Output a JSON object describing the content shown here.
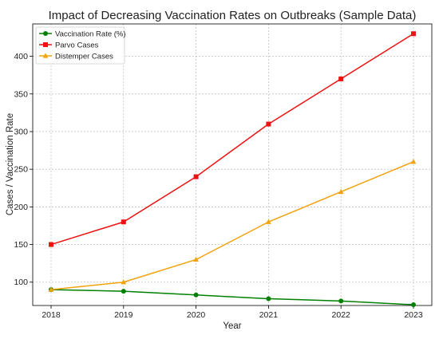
{
  "chart_data": {
    "type": "line",
    "title": "Impact of Decreasing Vaccination Rates on Outbreaks (Sample Data)",
    "xlabel": "Year",
    "ylabel": "Cases / Vaccination Rate",
    "x": [
      2018,
      2019,
      2020,
      2021,
      2022,
      2023
    ],
    "y_ticks": [
      100,
      150,
      200,
      250,
      300,
      350,
      400
    ],
    "ylim": [
      69,
      443
    ],
    "grid": true,
    "legend_position": "top-left",
    "series": [
      {
        "name": "Vaccination Rate (%)",
        "values": [
          90,
          88,
          83,
          78,
          75,
          70
        ],
        "color": "#008000",
        "marker": "circle"
      },
      {
        "name": "Parvo Cases",
        "values": [
          150,
          180,
          240,
          310,
          370,
          430
        ],
        "color": "#ee1111",
        "marker": "square"
      },
      {
        "name": "Distemper Cases",
        "values": [
          90,
          100,
          130,
          180,
          220,
          260
        ],
        "color": "#f2a20c",
        "marker": "triangle"
      }
    ]
  }
}
